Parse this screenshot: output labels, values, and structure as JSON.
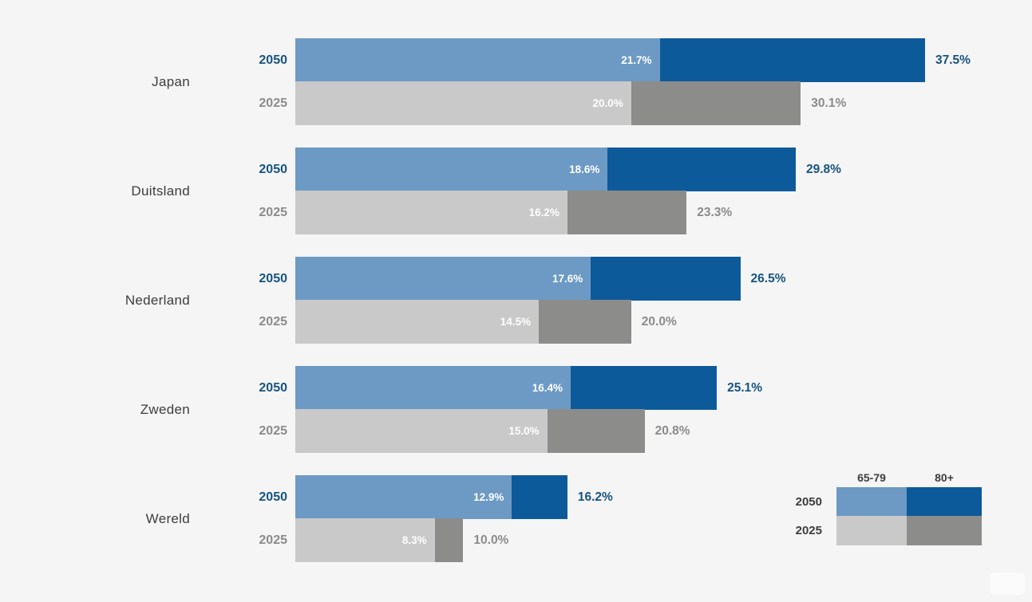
{
  "background": "#f5f5f6",
  "colors": {
    "background": "#f5f5f6",
    "light_blue": "#6c9ac4",
    "dark_blue": "#0d5a9b",
    "light_gray": "#c9c9c9",
    "dark_gray": "#8c8c8a",
    "label_2050": "#175480",
    "label_2025": "#8b8b8b",
    "country_label": "#3d3d3d",
    "legend_text": "#3d3d3d",
    "bar_value_text": "#ffffff"
  },
  "chart_data": {
    "type": "bar",
    "orientation": "horizontal",
    "stacked": true,
    "unit": "%",
    "xlim": [
      0,
      37.5
    ],
    "grid": false,
    "categories": [
      "Japan",
      "Duitsland",
      "Nederland",
      "Zweden",
      "Wereld"
    ],
    "years": [
      "2050",
      "2025"
    ],
    "age_groups": [
      "65-79",
      "80+"
    ],
    "groups": [
      {
        "country": "Japan",
        "rows": [
          {
            "year": "2050",
            "age_65_79": 21.7,
            "age_80_plus": 15.8,
            "total": 37.5,
            "value_label": "21.7%",
            "total_label": "37.5%"
          },
          {
            "year": "2025",
            "age_65_79": 20.0,
            "age_80_plus": 10.1,
            "total": 30.1,
            "value_label": "20.0%",
            "total_label": "30.1%"
          }
        ]
      },
      {
        "country": "Duitsland",
        "rows": [
          {
            "year": "2050",
            "age_65_79": 18.6,
            "age_80_plus": 11.2,
            "total": 29.8,
            "value_label": "18.6%",
            "total_label": "29.8%"
          },
          {
            "year": "2025",
            "age_65_79": 16.2,
            "age_80_plus": 7.1,
            "total": 23.3,
            "value_label": "16.2%",
            "total_label": "23.3%"
          }
        ]
      },
      {
        "country": "Nederland",
        "rows": [
          {
            "year": "2050",
            "age_65_79": 17.6,
            "age_80_plus": 8.9,
            "total": 26.5,
            "value_label": "17.6%",
            "total_label": "26.5%"
          },
          {
            "year": "2025",
            "age_65_79": 14.5,
            "age_80_plus": 5.5,
            "total": 20.0,
            "value_label": "14.5%",
            "total_label": "20.0%"
          }
        ]
      },
      {
        "country": "Zweden",
        "rows": [
          {
            "year": "2050",
            "age_65_79": 16.4,
            "age_80_plus": 8.7,
            "total": 25.1,
            "value_label": "16.4%",
            "total_label": "25.1%"
          },
          {
            "year": "2025",
            "age_65_79": 15.0,
            "age_80_plus": 5.8,
            "total": 20.8,
            "value_label": "15.0%",
            "total_label": "20.8%"
          }
        ]
      },
      {
        "country": "Wereld",
        "rows": [
          {
            "year": "2050",
            "age_65_79": 12.9,
            "age_80_plus": 3.3,
            "total": 16.2,
            "value_label": "12.9%",
            "total_label": "16.2%"
          },
          {
            "year": "2025",
            "age_65_79": 8.3,
            "age_80_plus": 1.7,
            "total": 10.0,
            "value_label": "8.3%",
            "total_label": "10.0%"
          }
        ]
      }
    ],
    "legend": {
      "col_headers": [
        "65-79",
        "80+"
      ],
      "row_labels": [
        "2050",
        "2025"
      ],
      "position": "bottom-right"
    }
  }
}
